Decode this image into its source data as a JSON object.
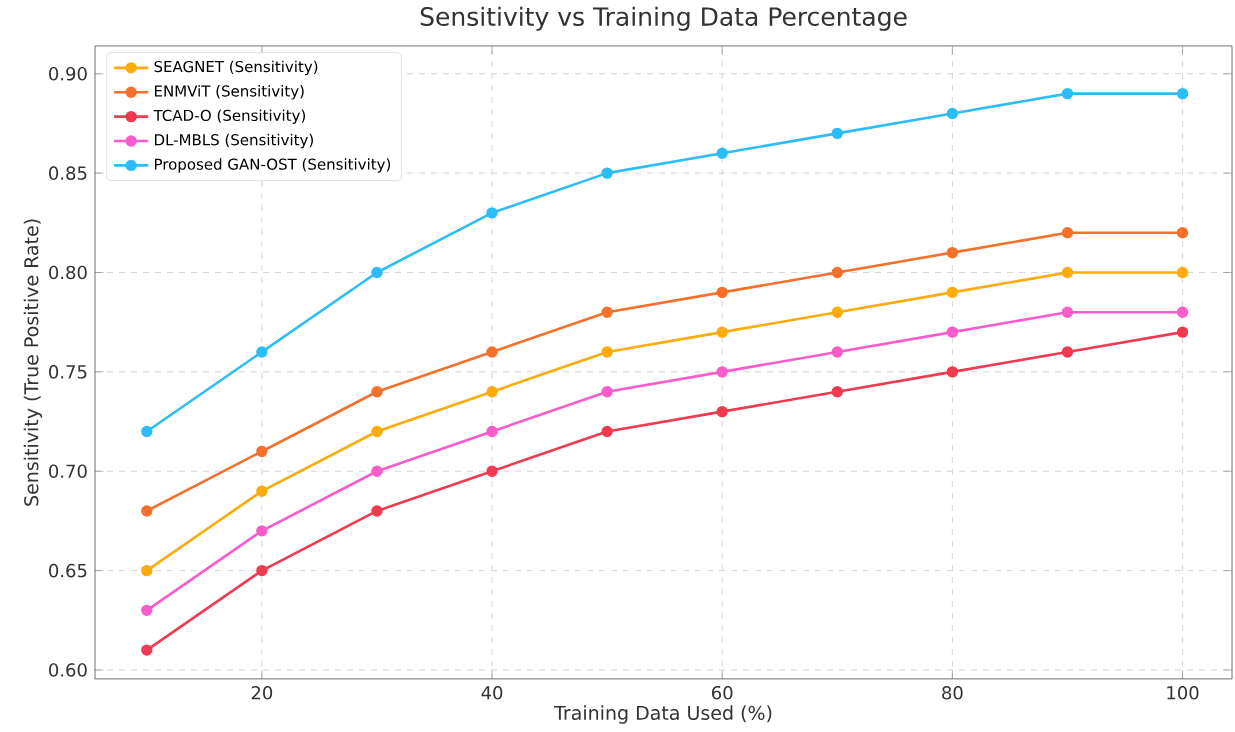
{
  "chart_data": {
    "type": "line",
    "title": "Sensitivity vs Training Data Percentage",
    "xlabel": "Training Data Used (%)",
    "ylabel": "Sensitivity (True Positive Rate)",
    "x": [
      10,
      20,
      30,
      40,
      50,
      60,
      70,
      80,
      90,
      100
    ],
    "series": [
      {
        "name": "SEAGNET (Sensitivity)",
        "color": "#fbac0b",
        "values": [
          0.65,
          0.69,
          0.72,
          0.74,
          0.76,
          0.77,
          0.78,
          0.79,
          0.8,
          0.8
        ]
      },
      {
        "name": "ENMViT (Sensitivity)",
        "color": "#f4702b",
        "values": [
          0.68,
          0.71,
          0.74,
          0.76,
          0.78,
          0.79,
          0.8,
          0.81,
          0.82,
          0.82
        ]
      },
      {
        "name": "TCAD-O (Sensitivity)",
        "color": "#f03a50",
        "values": [
          0.61,
          0.65,
          0.68,
          0.7,
          0.72,
          0.73,
          0.74,
          0.75,
          0.76,
          0.77
        ]
      },
      {
        "name": "DL-MBLS (Sensitivity)",
        "color": "#f85ccb",
        "values": [
          0.63,
          0.67,
          0.7,
          0.72,
          0.74,
          0.75,
          0.76,
          0.77,
          0.78,
          0.78
        ]
      },
      {
        "name": "Proposed GAN-OST (Sensitivity)",
        "color": "#2cbdf8",
        "values": [
          0.72,
          0.76,
          0.8,
          0.83,
          0.85,
          0.86,
          0.87,
          0.88,
          0.89,
          0.89
        ]
      }
    ],
    "xlim": [
      5.5,
      104.3
    ],
    "ylim": [
      0.5955,
      0.914
    ],
    "xticks": [
      20,
      40,
      60,
      80,
      100
    ],
    "yticks": [
      {
        "value": 0.6,
        "label": "0.60"
      },
      {
        "value": 0.65,
        "label": "0.65"
      },
      {
        "value": 0.7,
        "label": "0.70"
      },
      {
        "value": 0.75,
        "label": "0.75"
      },
      {
        "value": 0.8,
        "label": "0.80"
      },
      {
        "value": 0.85,
        "label": "0.85"
      },
      {
        "value": 0.9,
        "label": "0.90"
      }
    ],
    "grid": true,
    "legend": "top left",
    "marker": "circle",
    "line_style": "solid"
  }
}
